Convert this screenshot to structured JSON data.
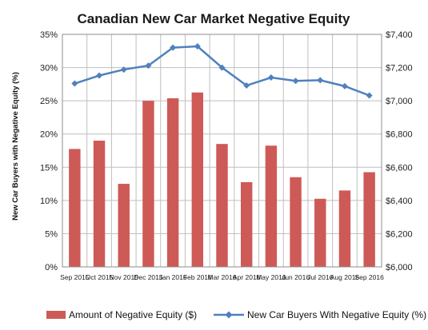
{
  "chart_data": {
    "type": "bar",
    "title": "Canadian New Car Market Negative Equity",
    "ylabel": "New Car Buyers with Negative Equity (%)",
    "ylabel_right": "",
    "categories": [
      "Sep 2015",
      "Oct 2015",
      "Nov 2015",
      "Dec 2015",
      "Jan 2016",
      "Feb 2016",
      "Mar 2016",
      "Apr 2016",
      "May 2016",
      "Jun 2016",
      "Jul 2016",
      "Aug 2016",
      "Sep 2016"
    ],
    "series": [
      {
        "name": "Amount of Negative Equity ($)",
        "type": "bar",
        "axis": "right",
        "color": "#cd5a56",
        "values": [
          6710,
          6760,
          6500,
          7000,
          7015,
          7050,
          6740,
          6510,
          6730,
          6540,
          6410,
          6460,
          6570
        ]
      },
      {
        "name": "New Car Buyers With Negative Equity (%)",
        "type": "line",
        "axis": "left",
        "color": "#4f81bd",
        "values": [
          27.6,
          28.8,
          29.7,
          30.3,
          33.0,
          33.2,
          30.0,
          27.3,
          28.5,
          28.0,
          28.1,
          27.2,
          25.8
        ]
      }
    ],
    "y_left": {
      "min": 0,
      "max": 35,
      "step": 5,
      "tick_labels": [
        "0%",
        "5%",
        "10%",
        "15%",
        "20%",
        "25%",
        "30%",
        "35%"
      ]
    },
    "y_right": {
      "min": 6000,
      "max": 7400,
      "step": 200,
      "tick_labels": [
        "$6,000",
        "$6,200",
        "$6,400",
        "$6,600",
        "$6,800",
        "$7,000",
        "$7,200",
        "$7,400"
      ]
    },
    "grid": true,
    "legend_position": "bottom"
  }
}
